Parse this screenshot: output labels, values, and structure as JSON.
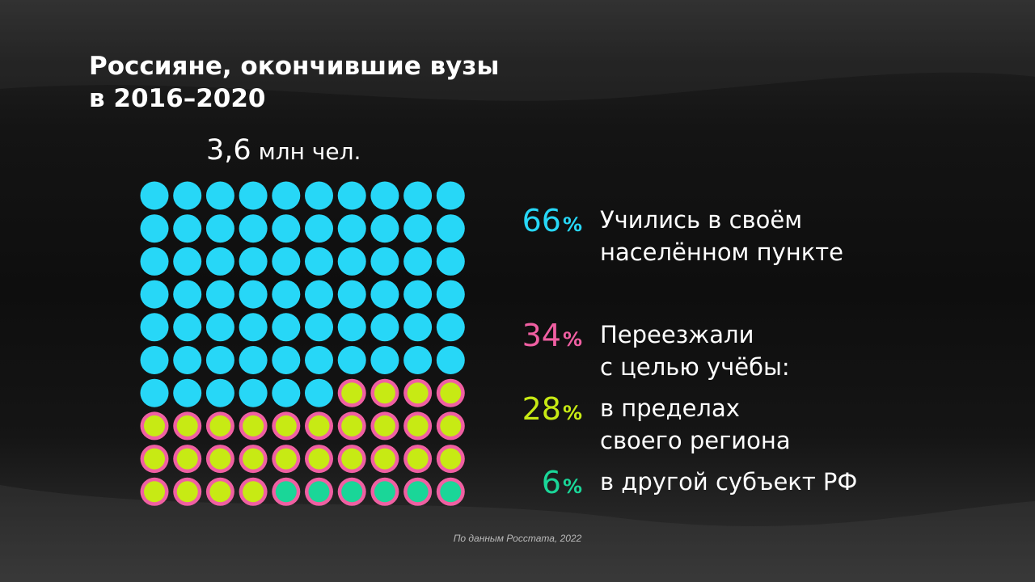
{
  "title": {
    "line1": "Россияне, окончившие вузы",
    "line2": "в 2016–2020"
  },
  "total": {
    "number": "3,6",
    "unit": "млн чел."
  },
  "colors": {
    "local": "#27d7f7",
    "moved": "#f05fa2",
    "region": "#c7ea14",
    "other_subject": "#1ad698",
    "text": "#ffffff",
    "source": "#b9b9b9"
  },
  "chart_data": {
    "type": "waffle",
    "total_label": "3,6 млн чел.",
    "grid": {
      "rows": 10,
      "cols": 10
    },
    "categories": [
      {
        "name": "Учились в своём населённом пункте",
        "value": 66,
        "color": "#27d7f7"
      },
      {
        "name": "в пределах своего региона",
        "value": 28,
        "color": "#c7ea14",
        "ring_color": "#f05fa2"
      },
      {
        "name": "в другой субъект РФ",
        "value": 6,
        "color": "#1ad698",
        "ring_color": "#f05fa2"
      }
    ],
    "group": {
      "name": "Переезжали с целью учёбы:",
      "value": 34,
      "color": "#f05fa2"
    }
  },
  "legend": [
    {
      "value": "66",
      "sign": "%",
      "color": "#27d7f7",
      "lines": [
        "Учились в своём",
        "населённом пункте"
      ]
    },
    {
      "value": "34",
      "sign": "%",
      "color": "#f05fa2",
      "lines": [
        "Переезжали",
        "с целью учёбы:"
      ]
    },
    {
      "value": "28",
      "sign": "%",
      "color": "#c7ea14",
      "lines": [
        "в пределах",
        "своего региона"
      ]
    },
    {
      "value": "6",
      "sign": "%",
      "color": "#1ad698",
      "lines": [
        "в другой субъект РФ"
      ]
    }
  ],
  "source": "По данным Росстата, 2022"
}
